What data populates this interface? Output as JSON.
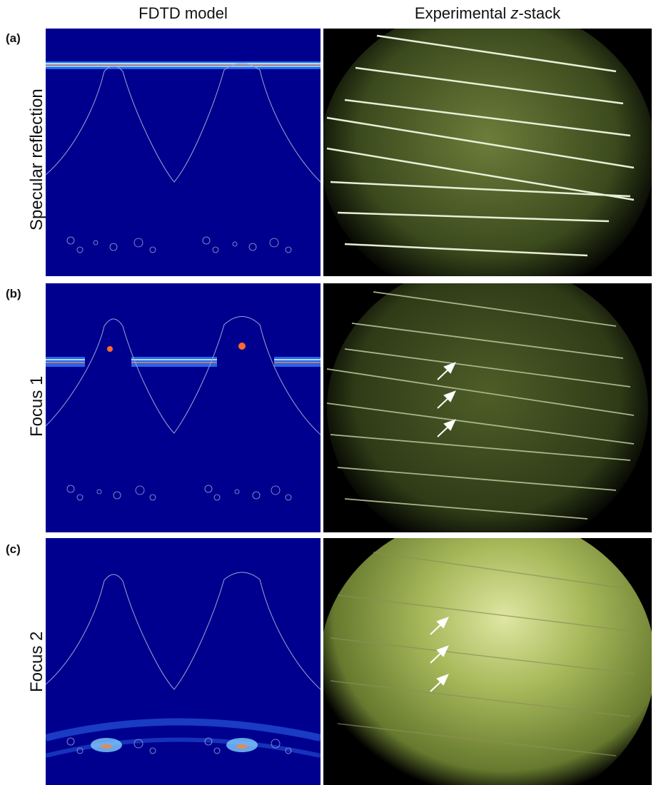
{
  "columns": {
    "left": "FDTD model",
    "right_prefix": "Experimental ",
    "right_italic": "z",
    "right_suffix": "-stack"
  },
  "rows": [
    {
      "tag": "(a)",
      "label": "Specular reflection"
    },
    {
      "tag": "(b)",
      "label": "Focus 1"
    },
    {
      "tag": "(c)",
      "label": "Focus 2"
    }
  ],
  "colors": {
    "fdtd_background": "#00008f",
    "field_band": "#5a9bff",
    "experimental_tint": "#5b6a2a",
    "arrow": "#ffffff"
  }
}
